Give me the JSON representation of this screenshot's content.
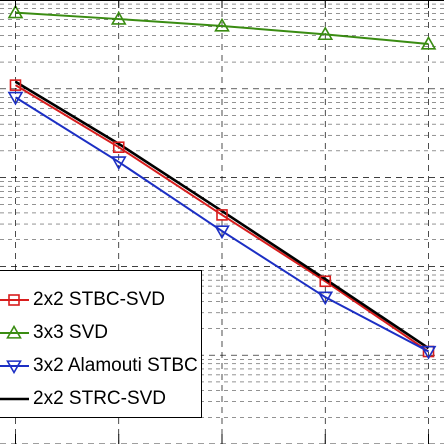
{
  "chart_data": {
    "type": "line",
    "title": "",
    "xlabel": "",
    "ylabel": "",
    "x": [
      0,
      1,
      2,
      3,
      4
    ],
    "xlim": [
      -0.15,
      4.15
    ],
    "y_scale": "log",
    "ylim": [
      1e-05,
      1
    ],
    "grid": true,
    "legend_position": "bottom-left",
    "series": [
      {
        "name": "2x2 STBC-SVD",
        "color": "#d81d1d",
        "marker": "square",
        "values": [
          0.11,
          0.022,
          0.0038,
          0.00068,
          0.00011
        ]
      },
      {
        "name": "3x3 SVD",
        "color": "#3a8c12",
        "marker": "triangle-up",
        "values": [
          0.72,
          0.61,
          0.51,
          0.41,
          0.32
        ]
      },
      {
        "name": "3x2 Alamouti STBC",
        "color": "#1c2fc4",
        "marker": "triangle-down",
        "values": [
          0.08,
          0.015,
          0.0025,
          0.00045,
          0.00011
        ]
      },
      {
        "name": "2x2 STRC-SVD",
        "color": "#000000",
        "marker": "none",
        "values": [
          0.12,
          0.024,
          0.0042,
          0.00072,
          0.00012
        ]
      }
    ]
  }
}
